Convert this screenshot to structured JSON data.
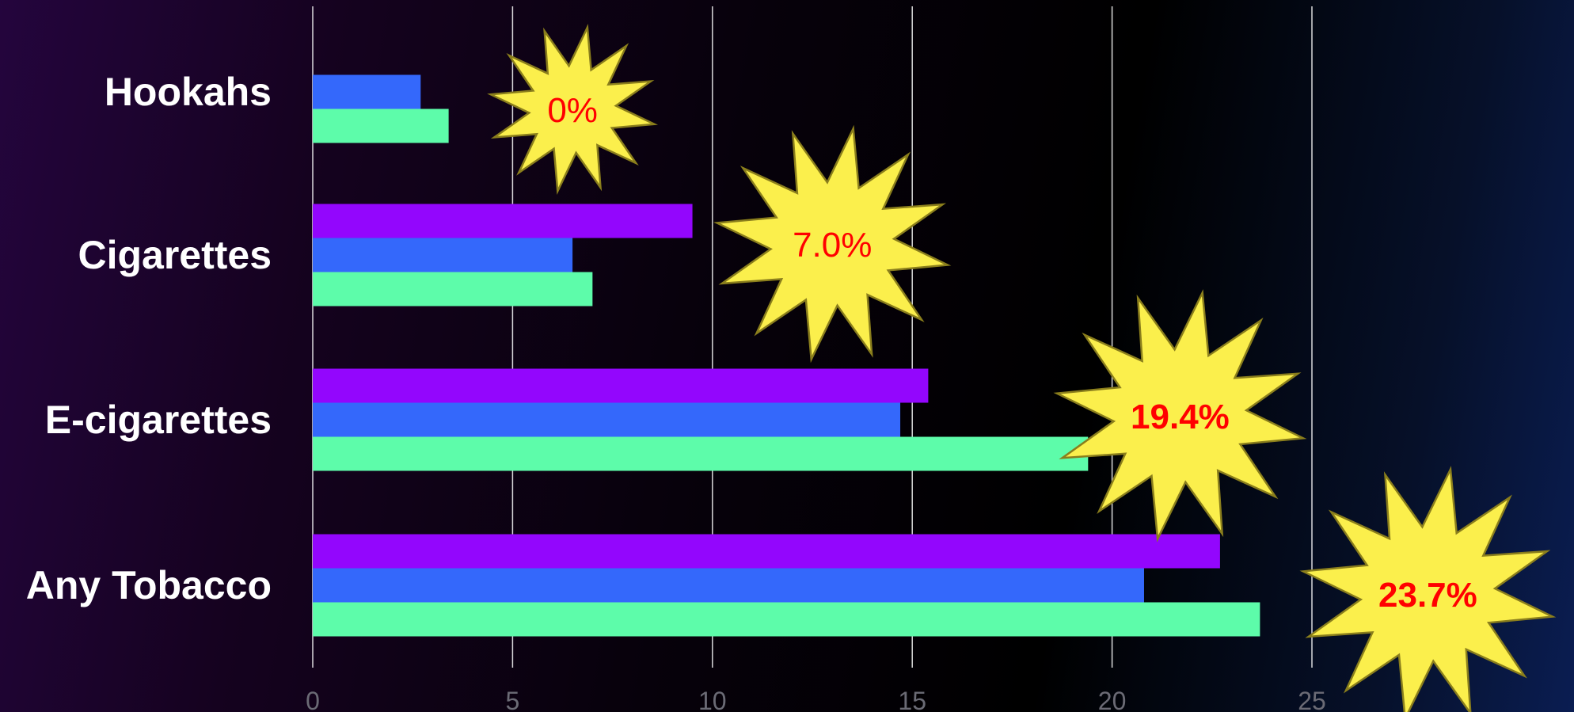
{
  "chart_data": {
    "type": "bar",
    "orientation": "horizontal",
    "categories": [
      "Hookahs",
      "Cigarettes",
      "E-cigarettes",
      "Any Tobacco"
    ],
    "series": [
      {
        "color": "#9306fd",
        "values": [
          null,
          9.5,
          15.4,
          22.7
        ]
      },
      {
        "color": "#3468fb",
        "values": [
          2.7,
          6.5,
          14.7,
          20.8
        ]
      },
      {
        "color": "#5dfcaa",
        "values": [
          3.4,
          7.0,
          19.4,
          23.7
        ]
      }
    ],
    "xlim": [
      0,
      25
    ],
    "xticks": [
      "0",
      "5",
      "10",
      "15",
      "20",
      "25"
    ],
    "grid": true,
    "legend": "none",
    "annotations": [
      {
        "text": "0%",
        "category": "Hookahs",
        "x": 6.5,
        "bold": false
      },
      {
        "text": "7.0%",
        "category": "Cigarettes",
        "x": 13.0,
        "bold": false
      },
      {
        "text": "19.4%",
        "category": "E-cigarettes",
        "x": 21.7,
        "bold": true
      },
      {
        "text": "23.7%",
        "category": "Any Tobacco",
        "x": 27.9,
        "bold": true
      }
    ],
    "colors": {
      "label": "#ffffff",
      "tick": "#6b6b75",
      "grid": "#ffffff",
      "burst_fill": "#fbef4c",
      "burst_stroke": "#8a7e1c",
      "burst_text": "#ff0000"
    }
  }
}
